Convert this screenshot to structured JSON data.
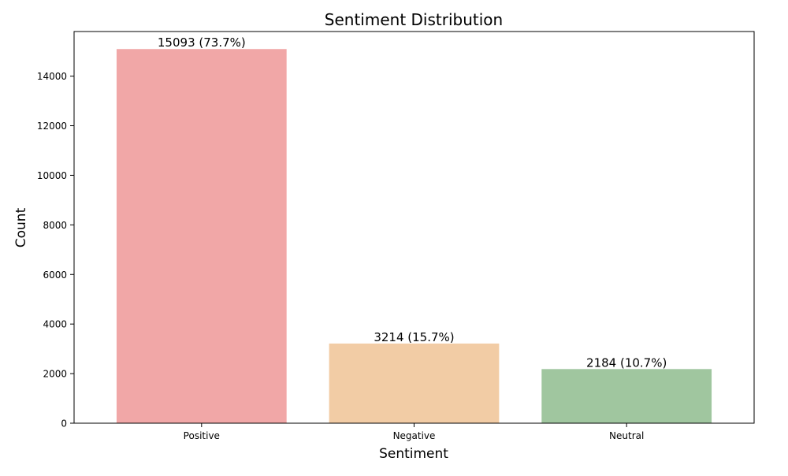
{
  "chart_data": {
    "type": "bar",
    "title": "Sentiment Distribution",
    "xlabel": "Sentiment",
    "ylabel": "Count",
    "categories": [
      "Positive",
      "Negative",
      "Neutral"
    ],
    "values": [
      15093,
      3214,
      2184
    ],
    "bar_labels": [
      "15093 (73.7%)",
      "3214 (15.7%)",
      "2184 (10.7%)"
    ],
    "colors": [
      "#f1a7a7",
      "#f2cca5",
      "#a0c69f"
    ],
    "ylim": [
      0,
      15800
    ],
    "yticks": [
      0,
      2000,
      4000,
      6000,
      8000,
      10000,
      12000,
      14000
    ],
    "grid": false,
    "legend": "none"
  }
}
